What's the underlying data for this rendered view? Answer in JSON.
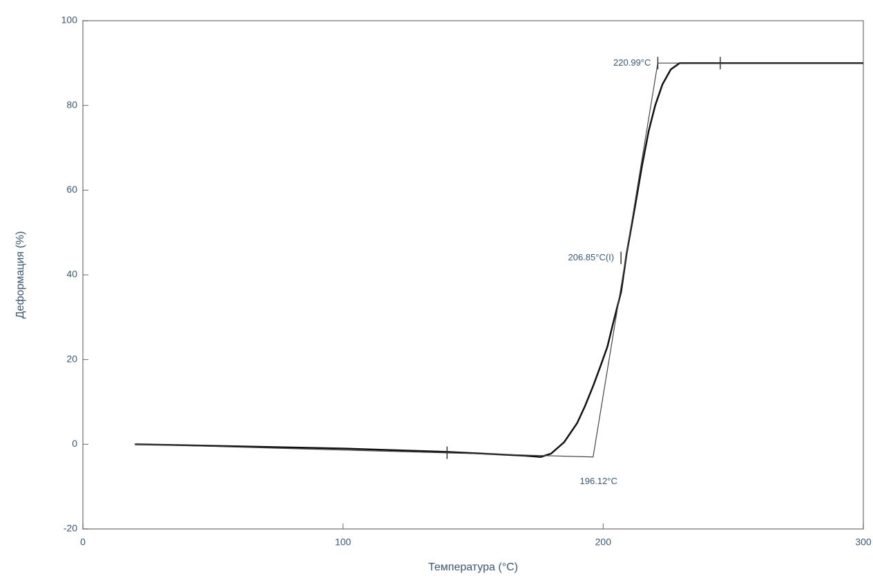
{
  "chart_data": {
    "type": "line",
    "xlabel": "Температура (°C)",
    "ylabel": "Деформация (%)",
    "xlim": [
      0,
      300
    ],
    "xticks": [
      0,
      100,
      200,
      300
    ],
    "ylim": [
      -20,
      100
    ],
    "yticks": [
      -20,
      0,
      20,
      40,
      60,
      80,
      100
    ],
    "series": [
      {
        "color": "#111111",
        "width": 2.5,
        "x": [
          20,
          60,
          100,
          140,
          170,
          176,
          180,
          185,
          190,
          193,
          196.3,
          199,
          201.6,
          204,
          206.9,
          209,
          212.2,
          215,
          217.5,
          220,
          222.8,
          226,
          229.4,
          240,
          260,
          280,
          300
        ],
        "values": [
          0,
          -0.5,
          -1,
          -1.8,
          -2.7,
          -3,
          -2.2,
          0.5,
          5,
          9,
          14,
          18.5,
          23,
          29,
          36,
          45,
          56,
          66,
          74,
          80,
          85,
          88.5,
          90,
          90,
          90,
          90,
          90
        ]
      },
      {
        "color": "#444444",
        "width": 1.2,
        "x": [
          20,
          196.12,
          220.99,
          300
        ],
        "values": [
          0,
          -3,
          90,
          90
        ]
      }
    ],
    "markers": [
      {
        "x": 140,
        "y": -2
      },
      {
        "x": 206.85,
        "y": 44
      },
      {
        "x": 221,
        "y": 90
      },
      {
        "x": 245,
        "y": 90
      }
    ],
    "annotations": [
      {
        "text": "220.99°C",
        "x": 220.99,
        "y": 90,
        "anchor": "end"
      },
      {
        "text": "206.85°C(I)",
        "x": 206.85,
        "y": 44,
        "anchor": "end"
      },
      {
        "text": "196.12°C",
        "x": 196.12,
        "y": -3,
        "anchor": "middle"
      }
    ]
  }
}
